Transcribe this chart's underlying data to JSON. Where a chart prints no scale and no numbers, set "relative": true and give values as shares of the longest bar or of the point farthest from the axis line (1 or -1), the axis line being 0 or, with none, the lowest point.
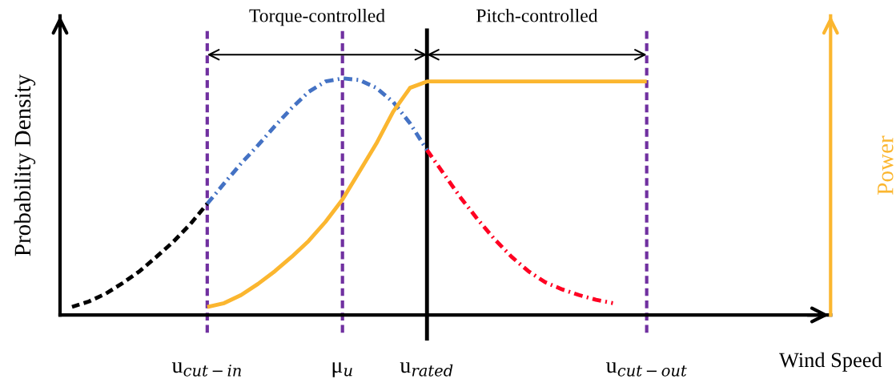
{
  "chart_data": {
    "type": "line",
    "relative": true,
    "xlabel": "Wind Speed",
    "ylabel": "Probability Density",
    "y2label": "Power",
    "categories": [
      null,
      null,
      null,
      null,
      null,
      null,
      null,
      null,
      "u$_{cut−in}$",
      null,
      null,
      null,
      null,
      null,
      null,
      null,
      "μ$_{u}$",
      null,
      null,
      null,
      null,
      "u$_{rated}$",
      null,
      null,
      null,
      null,
      null,
      null,
      null,
      null,
      null,
      null,
      null,
      null,
      "u$_{cut−out}$",
      null,
      null,
      null,
      null,
      null,
      null,
      null,
      null,
      null,
      null
    ],
    "series": [
      {
        "color": "#000000",
        "line_style": "dashed",
        "values": [
          0.034,
          0.057,
          0.09,
          0.135,
          0.185,
          0.246,
          0.31,
          0.384,
          0.47,
          null,
          null,
          null,
          null,
          null,
          null,
          null,
          null,
          null,
          null,
          null,
          null,
          null,
          null,
          null,
          null,
          null,
          null,
          null,
          null,
          null,
          null,
          null,
          null,
          null,
          null,
          null,
          null,
          null,
          null,
          null,
          null,
          null,
          null,
          null,
          null
        ]
      },
      {
        "color": "#4472c4",
        "line_style": "dashdot",
        "values": [
          null,
          null,
          null,
          null,
          null,
          null,
          null,
          null,
          0.47,
          0.556,
          0.64,
          0.717,
          0.798,
          0.875,
          0.943,
          0.987,
          1,
          0.993,
          0.96,
          0.9,
          0.81,
          0.697,
          null,
          null,
          null,
          null,
          null,
          null,
          null,
          null,
          null,
          null,
          null,
          null,
          null,
          null,
          null,
          null,
          null,
          null,
          null,
          null,
          null,
          null,
          null
        ]
      },
      {
        "color": "#ff0022",
        "line_style": "dashdot",
        "values": [
          null,
          null,
          null,
          null,
          null,
          null,
          null,
          null,
          null,
          null,
          null,
          null,
          null,
          null,
          null,
          null,
          null,
          null,
          null,
          null,
          null,
          0.697,
          0.596,
          0.495,
          0.404,
          0.32,
          0.246,
          0.185,
          0.138,
          0.108,
          0.084,
          0.064,
          0.05,
          null,
          null,
          null,
          null,
          null,
          null,
          null,
          null,
          null,
          null,
          null,
          null
        ]
      },
      {
        "color": "#fbb62f",
        "line_style": "solid",
        "axis": "y2",
        "values": [
          null,
          null,
          null,
          null,
          null,
          null,
          null,
          null,
          0.034,
          0.05,
          0.084,
          0.131,
          0.185,
          0.246,
          0.313,
          0.394,
          0.488,
          0.606,
          0.724,
          0.859,
          0.96,
          0.987,
          0.987,
          0.987,
          0.987,
          0.987,
          0.987,
          0.987,
          0.987,
          0.987,
          0.987,
          0.987,
          0.987,
          0.987,
          0.987,
          null,
          null,
          null,
          null,
          null,
          null,
          null,
          null,
          null,
          null
        ]
      }
    ],
    "ref_lines": [
      {
        "axis": "x",
        "value": "u$_{cut−in}$",
        "color": "#7030a0",
        "line_style": "dashed"
      },
      {
        "axis": "x",
        "value": "μ$_{u}$",
        "color": "#7030a0",
        "line_style": "dashed"
      },
      {
        "axis": "x",
        "value": "u$_{rated}$",
        "color": "#000000",
        "line_style": "solid"
      },
      {
        "axis": "x",
        "value": "u$_{cut−out}$",
        "color": "#7030a0",
        "line_style": "dashed"
      }
    ],
    "annotations": [
      "Torque-controlled",
      "Pitch-controlled"
    ],
    "grid": false,
    "marker": "none"
  }
}
